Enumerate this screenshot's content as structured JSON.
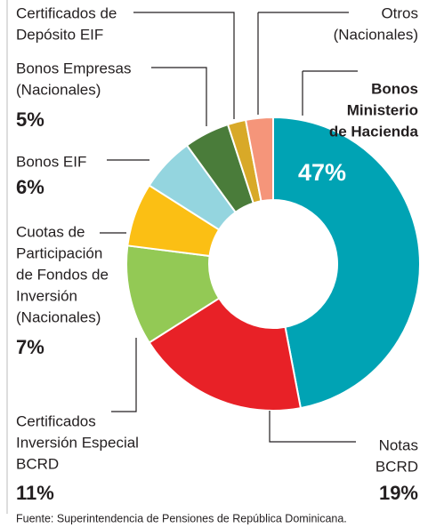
{
  "chart_data": {
    "type": "donut",
    "categories": [
      [
        "Bonos",
        "Ministerio",
        "de Hacienda"
      ],
      [
        "Notas",
        "BCRD"
      ],
      [
        "Certificados",
        "Inversión Especial",
        "BCRD"
      ],
      [
        "Cuotas de",
        "Participación",
        "de Fondos de",
        "Inversión",
        "(Nacionales)"
      ],
      [
        "Bonos EIF"
      ],
      [
        "Bonos Empresas",
        "(Nacionales)"
      ],
      [
        "Certificados de",
        "Depósito EIF"
      ],
      [
        "Otros",
        "(Nacionales)"
      ]
    ],
    "values": [
      47,
      19,
      11,
      7,
      6,
      5,
      2,
      3
    ],
    "value_labels": [
      "47%",
      "19%",
      "11%",
      "7%",
      "6%",
      "5%",
      null,
      null
    ],
    "colors": [
      "#00a3b4",
      "#e82127",
      "#93c955",
      "#fbbf14",
      "#94d5df",
      "#4a7c3a",
      "#d8a928",
      "#f5957a"
    ],
    "source": "Fuente: Superintendencia de Pensiones de República Dominicana."
  }
}
